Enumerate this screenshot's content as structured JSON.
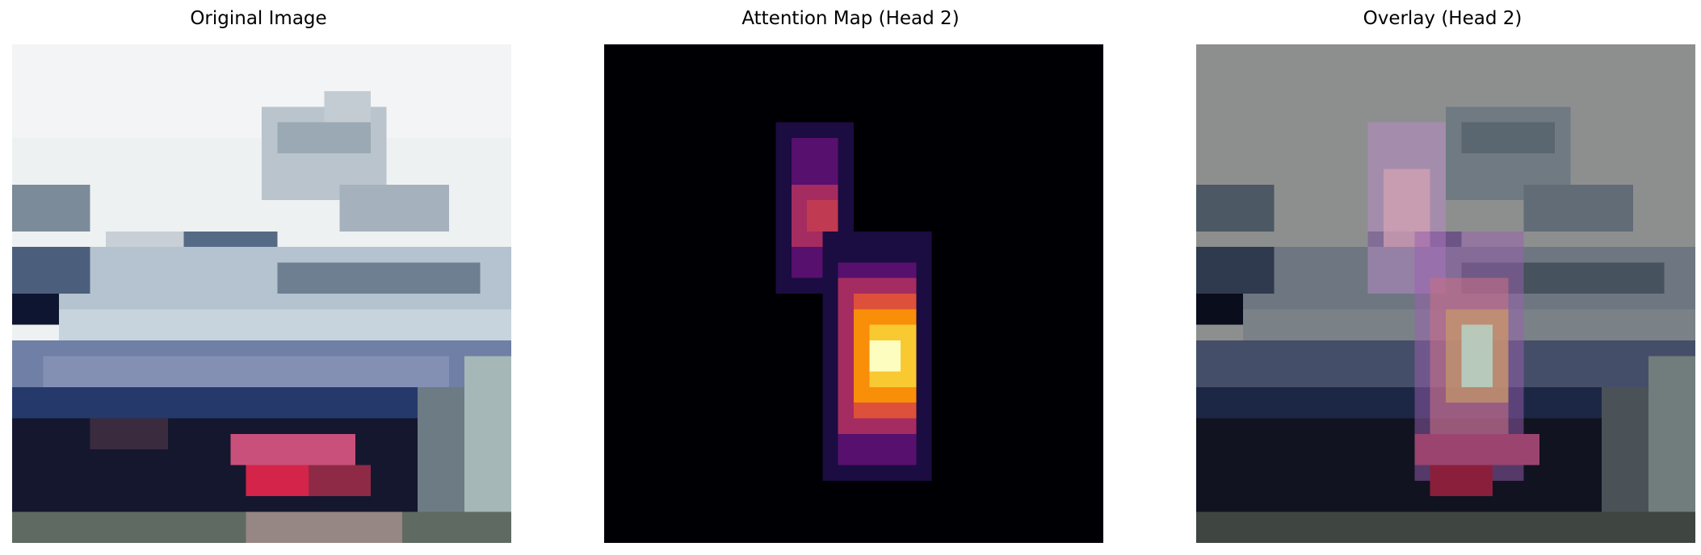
{
  "figure": {
    "panels": [
      {
        "title": "Original Image",
        "image": "pixelated 32x32 photo of a car (windshield, hood, red tail light) on a light sky background"
      },
      {
        "title": "Attention Map (Head 2)",
        "image": "inferno-colormap heatmap, bright yellow-white spot near center-right, dark purple elongated blob above it, black background"
      },
      {
        "title": "Overlay (Head 2)",
        "image": "grayscale-dimmed car photo with translucent pink/purple/yellow attention heatmap overlay"
      }
    ]
  },
  "colors": {
    "background": "#ffffff",
    "heat_peak": "#fcfdbf",
    "heat_mid": "#f98e09",
    "heat_low": "#57106e"
  }
}
